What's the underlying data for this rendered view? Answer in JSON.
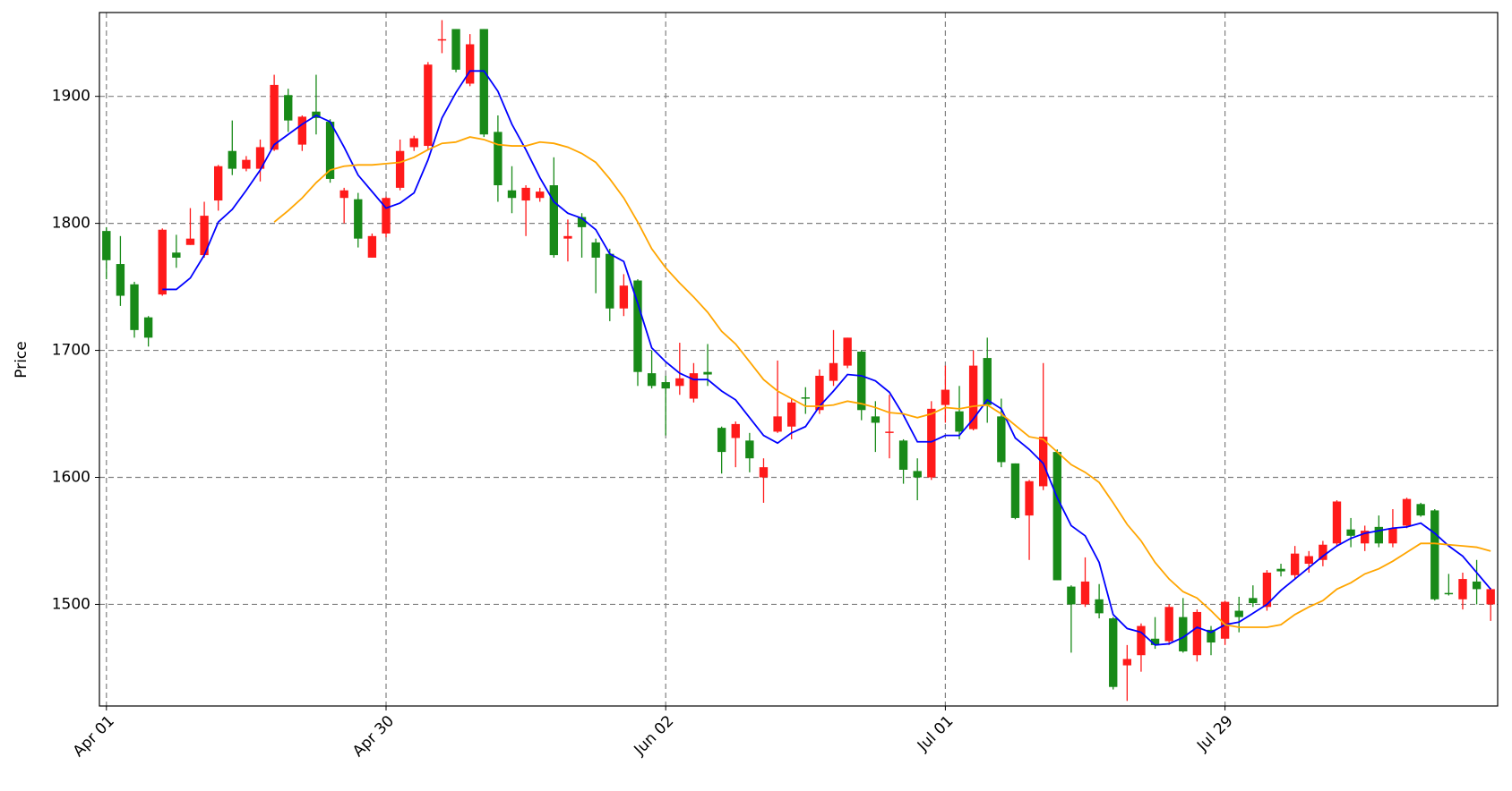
{
  "chart_data": {
    "type": "candlestick",
    "ylabel": "Price",
    "xlim": [
      -0.5,
      99.5
    ],
    "xticks": [
      {
        "value": 0,
        "label": "Apr 01"
      },
      {
        "value": 20,
        "label": "Apr 30"
      },
      {
        "value": 40,
        "label": "Jun 02"
      },
      {
        "value": 60,
        "label": "Jul 01"
      },
      {
        "value": 80,
        "label": "Jul 29"
      }
    ],
    "ylim": [
      1420,
      1966
    ],
    "yticks": [
      1500,
      1600,
      1700,
      1800,
      1900
    ],
    "grid": true,
    "up_color": "#ff1a1a",
    "down_color": "#188a18",
    "open": [
      1794,
      1768,
      1752,
      1726,
      1744,
      1777,
      1783,
      1775,
      1818,
      1857,
      1843,
      1843,
      1858,
      1901,
      1862,
      1888,
      1880,
      1820,
      1819,
      1773,
      1792,
      1828,
      1860,
      1861,
      1944,
      1953,
      1910,
      1953,
      1872,
      1826,
      1818,
      1820,
      1830,
      1788,
      1805,
      1785,
      1776,
      1733,
      1755,
      1682,
      1675,
      1672,
      1662,
      1683,
      1639,
      1631,
      1629,
      1600,
      1636,
      1640,
      1663,
      1653,
      1676,
      1688,
      1699,
      1648,
      1635,
      1629,
      1605,
      1600,
      1657,
      1652,
      1638,
      1694,
      1648,
      1611,
      1570,
      1593,
      1620,
      1514,
      1500,
      1504,
      1489,
      1452,
      1460,
      1473,
      1471,
      1490,
      1460,
      1480,
      1473,
      1495,
      1505,
      1498,
      1528,
      1523,
      1532,
      1535,
      1548,
      1559,
      1548,
      1561,
      1548,
      1562,
      1579,
      1574,
      1509,
      1504,
      1518,
      1500
    ],
    "high": [
      1797,
      1790,
      1754,
      1727,
      1796,
      1791,
      1812,
      1817,
      1846,
      1881,
      1853,
      1866,
      1917,
      1906,
      1885,
      1917,
      1882,
      1828,
      1824,
      1792,
      1821,
      1866,
      1869,
      1927,
      1960,
      1953,
      1949,
      1953,
      1885,
      1845,
      1830,
      1828,
      1852,
      1803,
      1808,
      1788,
      1780,
      1760,
      1756,
      1700,
      1680,
      1706,
      1690,
      1705,
      1640,
      1644,
      1635,
      1615,
      1692,
      1662,
      1671,
      1685,
      1716,
      1710,
      1700,
      1660,
      1665,
      1630,
      1615,
      1660,
      1688,
      1672,
      1700,
      1710,
      1662,
      1611,
      1598,
      1690,
      1622,
      1515,
      1537,
      1516,
      1490,
      1468,
      1485,
      1490,
      1500,
      1505,
      1496,
      1483,
      1503,
      1506,
      1515,
      1527,
      1532,
      1546,
      1542,
      1550,
      1582,
      1568,
      1562,
      1570,
      1575,
      1584,
      1580,
      1575,
      1524,
      1525,
      1535,
      1513
    ],
    "low": [
      1756,
      1735,
      1710,
      1703,
      1743,
      1765,
      1783,
      1773,
      1810,
      1838,
      1841,
      1833,
      1857,
      1872,
      1857,
      1870,
      1832,
      1800,
      1781,
      1773,
      1789,
      1826,
      1857,
      1858,
      1934,
      1919,
      1908,
      1868,
      1817,
      1808,
      1790,
      1817,
      1773,
      1770,
      1773,
      1745,
      1723,
      1727,
      1672,
      1670,
      1633,
      1665,
      1659,
      1672,
      1603,
      1608,
      1604,
      1580,
      1635,
      1630,
      1650,
      1650,
      1672,
      1686,
      1645,
      1620,
      1615,
      1595,
      1582,
      1598,
      1643,
      1630,
      1637,
      1643,
      1608,
      1567,
      1535,
      1590,
      1519,
      1462,
      1498,
      1489,
      1433,
      1424,
      1447,
      1465,
      1468,
      1462,
      1455,
      1460,
      1468,
      1478,
      1498,
      1495,
      1522,
      1520,
      1525,
      1530,
      1546,
      1545,
      1542,
      1545,
      1545,
      1560,
      1569,
      1503,
      1507,
      1496,
      1500,
      1487
    ],
    "close": [
      1771,
      1743,
      1716,
      1710,
      1795,
      1773,
      1788,
      1806,
      1845,
      1843,
      1850,
      1860,
      1909,
      1881,
      1884,
      1883,
      1835,
      1826,
      1788,
      1790,
      1820,
      1857,
      1867,
      1925,
      1945,
      1921,
      1941,
      1870,
      1830,
      1820,
      1828,
      1825,
      1775,
      1790,
      1797,
      1773,
      1733,
      1751,
      1683,
      1672,
      1670,
      1678,
      1682,
      1681,
      1620,
      1642,
      1615,
      1608,
      1648,
      1659,
      1662,
      1680,
      1690,
      1710,
      1653,
      1643,
      1636,
      1606,
      1600,
      1654,
      1669,
      1636,
      1688,
      1657,
      1612,
      1568,
      1597,
      1632,
      1519,
      1500,
      1518,
      1493,
      1435,
      1457,
      1483,
      1468,
      1498,
      1463,
      1494,
      1470,
      1502,
      1490,
      1501,
      1525,
      1526,
      1540,
      1538,
      1547,
      1581,
      1554,
      1558,
      1548,
      1560,
      1583,
      1570,
      1504,
      1508,
      1520,
      1512,
      1512
    ],
    "lines": [
      {
        "color": "#0000ff",
        "values": [
          null,
          null,
          null,
          null,
          1748,
          1748,
          1757,
          1775,
          1801,
          1811,
          1826,
          1842,
          1862,
          1870,
          1878,
          1885,
          1880,
          1860,
          1838,
          1825,
          1812,
          1816,
          1824,
          1850,
          1883,
          1903,
          1920,
          1920,
          1904,
          1878,
          1858,
          1836,
          1817,
          1808,
          1804,
          1795,
          1776,
          1770,
          1737,
          1702,
          1691,
          1682,
          1677,
          1677,
          1668,
          1661,
          1647,
          1633,
          1627,
          1635,
          1640,
          1656,
          1668,
          1681,
          1680,
          1676,
          1667,
          1649,
          1628,
          1628,
          1633,
          1633,
          1646,
          1661,
          1654,
          1631,
          1622,
          1611,
          1584,
          1562,
          1554,
          1533,
          1492,
          1481,
          1478,
          1468,
          1469,
          1474,
          1482,
          1478,
          1484,
          1486,
          1493,
          1500,
          1511,
          1520,
          1529,
          1538,
          1546,
          1552,
          1556,
          1558,
          1560,
          1561,
          1564,
          1556,
          1546,
          1538,
          1525,
          1512
        ]
      },
      {
        "color": "#ffa500",
        "values": [
          null,
          null,
          null,
          null,
          null,
          null,
          null,
          null,
          null,
          null,
          null,
          null,
          1801,
          1810,
          1820,
          1832,
          1842,
          1845,
          1846,
          1846,
          1847,
          1848,
          1852,
          1858,
          1863,
          1864,
          1868,
          1866,
          1862,
          1861,
          1861,
          1864,
          1863,
          1860,
          1855,
          1848,
          1835,
          1820,
          1801,
          1780,
          1765,
          1753,
          1742,
          1730,
          1715,
          1705,
          1691,
          1677,
          1668,
          1662,
          1656,
          1656,
          1657,
          1660,
          1658,
          1655,
          1651,
          1650,
          1647,
          1650,
          1655,
          1654,
          1656,
          1657,
          1650,
          1641,
          1632,
          1630,
          1620,
          1610,
          1604,
          1596,
          1580,
          1563,
          1550,
          1533,
          1520,
          1510,
          1505,
          1495,
          1484,
          1482,
          1482,
          1482,
          1484,
          1492,
          1498,
          1503,
          1512,
          1517,
          1524,
          1528,
          1534,
          1541,
          1548,
          1548,
          1547,
          1546,
          1545,
          1542
        ]
      }
    ]
  }
}
